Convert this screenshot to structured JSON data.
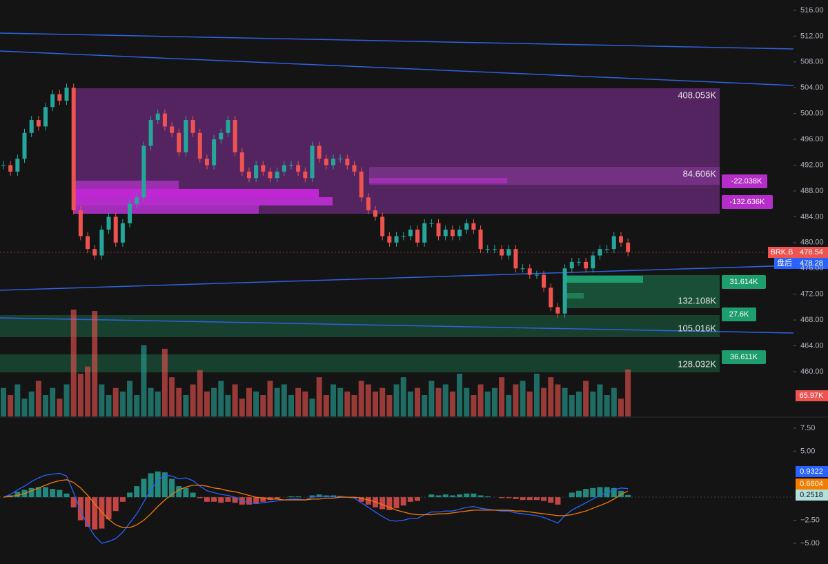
{
  "chart_data": [
    {
      "type": "candlestick",
      "symbol": "BRK.B",
      "close": [
        492,
        491,
        493,
        497,
        499,
        498,
        501,
        503,
        502,
        504,
        485,
        481,
        479,
        478,
        482,
        484,
        480,
        483,
        486,
        487,
        495,
        499,
        500,
        498,
        497,
        494,
        499,
        497,
        493,
        492,
        496,
        497,
        499,
        494,
        491,
        490,
        492,
        491,
        490,
        491,
        492,
        492,
        491,
        490,
        495,
        493,
        492,
        493,
        493,
        492,
        491,
        487,
        485,
        484,
        481,
        480,
        481,
        481,
        482,
        480,
        483,
        483,
        481,
        482,
        481,
        482,
        483,
        482,
        479,
        479,
        479,
        478,
        479,
        476,
        476,
        475,
        475,
        473,
        470,
        469,
        476,
        477,
        477,
        476,
        478,
        479,
        479,
        481,
        480,
        478.54
      ],
      "volume": [
        40,
        30,
        45,
        25,
        35,
        50,
        30,
        40,
        25,
        45,
        150,
        60,
        70,
        148,
        45,
        30,
        40,
        35,
        50,
        30,
        100,
        40,
        35,
        95,
        55,
        40,
        30,
        45,
        65,
        35,
        40,
        50,
        30,
        45,
        25,
        40,
        35,
        30,
        50,
        40,
        45,
        30,
        40,
        35,
        25,
        55,
        30,
        45,
        40,
        35,
        30,
        50,
        45,
        35,
        40,
        30,
        45,
        55,
        35,
        40,
        30,
        50,
        40,
        45,
        35,
        60,
        40,
        30,
        45,
        35,
        40,
        55,
        30,
        45,
        50,
        35,
        60,
        40,
        55,
        45,
        40,
        30,
        35,
        50,
        35,
        45,
        30,
        40,
        25,
        65.97
      ],
      "volume_color_up": "#26a69a",
      "volume_color_down": "#ef5350",
      "volume_last_label": "65.97K",
      "up_color": "#26a69a",
      "down_color": "#ef5350",
      "after_hours_label": "盘后",
      "after_hours_price": 478.28,
      "ylim": [
        453.05,
        517.6
      ],
      "yticks": [
        {
          "value": 516,
          "label": "516.00"
        },
        {
          "value": 512,
          "label": "512.00"
        },
        {
          "value": 508,
          "label": "508.00"
        },
        {
          "value": 504,
          "label": "504.00"
        },
        {
          "value": 500,
          "label": "500.00"
        },
        {
          "value": 496,
          "label": "496.00"
        },
        {
          "value": 492,
          "label": "492.00"
        },
        {
          "value": 488,
          "label": "488.00"
        },
        {
          "value": 484,
          "label": "484.00"
        },
        {
          "value": 480,
          "label": "480.00"
        },
        {
          "value": 476,
          "label": "476.00"
        },
        {
          "value": 472,
          "label": "472.00"
        },
        {
          "value": 468,
          "label": "468.00"
        },
        {
          "value": 464,
          "label": "464.00"
        },
        {
          "value": 460,
          "label": "460.00"
        }
      ],
      "annotations": {
        "zone_top": "408.053K",
        "zone_inner": "84.606K",
        "tag1": "-22.038K",
        "tag2": "-132.636K",
        "green1": "132.108K",
        "green1_tag": "31.614K",
        "green2": "105.016K",
        "green2_tag": "27.6K",
        "green3": "128.032K",
        "green3_tag": "36.611K"
      }
    },
    {
      "type": "macd",
      "macd": [
        0,
        0.3,
        0.8,
        1.2,
        1.7,
        2.1,
        2.4,
        2.5,
        2.6,
        2.3,
        0.5,
        -1.5,
        -3,
        -4.2,
        -5,
        -4.8,
        -4.5,
        -3.8,
        -2.8,
        -1.8,
        -0.5,
        0.8,
        1.8,
        2.4,
        2.3,
        2,
        2.1,
        1.8,
        1.2,
        0.7,
        0.5,
        0.3,
        0.2,
        0,
        -0.4,
        -0.6,
        -0.7,
        -0.6,
        -0.5,
        -0.4,
        -0.3,
        -0.2,
        -0.2,
        -0.3,
        0,
        0.1,
        0.1,
        0.1,
        0.1,
        0,
        -0.1,
        -0.6,
        -1.1,
        -1.6,
        -2.1,
        -2.5,
        -2.6,
        -2.5,
        -2.3,
        -2.3,
        -1.9,
        -1.6,
        -1.6,
        -1.5,
        -1.5,
        -1.3,
        -1.1,
        -1,
        -1.2,
        -1.3,
        -1.4,
        -1.5,
        -1.5,
        -1.7,
        -1.8,
        -1.9,
        -2,
        -2.2,
        -2.5,
        -2.8,
        -2,
        -1.4,
        -1,
        -0.6,
        -0.2,
        0.2,
        0.5,
        0.8,
        1,
        0.9322
      ],
      "signal": [
        0,
        0.1,
        0.2,
        0.4,
        0.7,
        1,
        1.3,
        1.6,
        1.8,
        1.9,
        1.6,
        1,
        0.2,
        -0.7,
        -1.6,
        -2.4,
        -3,
        -3.3,
        -3.3,
        -3,
        -2.5,
        -1.8,
        -1,
        -0.3,
        0.3,
        0.8,
        1.1,
        1.3,
        1.3,
        1.2,
        1,
        0.9,
        0.7,
        0.6,
        0.4,
        0.2,
        0,
        -0.1,
        -0.2,
        -0.2,
        -0.3,
        -0.3,
        -0.3,
        -0.3,
        -0.2,
        -0.2,
        -0.1,
        -0.1,
        0,
        0,
        0,
        -0.1,
        -0.3,
        -0.5,
        -0.8,
        -1.1,
        -1.4,
        -1.6,
        -1.8,
        -1.9,
        -1.9,
        -1.9,
        -1.8,
        -1.8,
        -1.7,
        -1.6,
        -1.5,
        -1.4,
        -1.4,
        -1.4,
        -1.4,
        -1.4,
        -1.4,
        -1.5,
        -1.5,
        -1.6,
        -1.7,
        -1.8,
        -1.9,
        -2,
        -2,
        -1.9,
        -1.7,
        -1.5,
        -1.2,
        -0.9,
        -0.6,
        -0.2,
        0.3,
        0.6804
      ],
      "histogram": [
        0,
        0.2,
        0.6,
        0.8,
        1,
        1.1,
        1.1,
        0.9,
        0.8,
        0.4,
        -1.1,
        -2.5,
        -3.2,
        -3.5,
        -3.4,
        -2.4,
        -1.5,
        -0.5,
        0.5,
        1.2,
        2,
        2.6,
        2.8,
        2.7,
        2,
        1.2,
        1,
        0.5,
        -0.1,
        -0.5,
        -0.5,
        -0.6,
        -0.5,
        -0.6,
        -0.8,
        -0.8,
        -0.7,
        -0.5,
        -0.3,
        -0.2,
        0,
        0.1,
        0.1,
        0,
        0.2,
        0.3,
        0.2,
        0.2,
        0.1,
        0,
        -0.1,
        -0.5,
        -0.8,
        -1.1,
        -1.3,
        -1.4,
        -1.2,
        -0.9,
        -0.5,
        -0.4,
        0,
        0.3,
        0.2,
        0.3,
        0.2,
        0.3,
        0.4,
        0.4,
        0.2,
        0.1,
        0,
        -0.1,
        -0.1,
        -0.2,
        -0.3,
        -0.3,
        -0.3,
        -0.4,
        -0.6,
        -0.8,
        0,
        0.5,
        0.7,
        0.9,
        1,
        1.1,
        1.1,
        1,
        0.7,
        0.2518
      ],
      "macd_color": "#2962ff",
      "signal_color": "#f57c00",
      "hist_up_color": "#26a69a",
      "hist_down_color": "#ef5350",
      "ylim": [
        -7.25,
        8.62
      ],
      "yticks": [
        {
          "value": 7.5,
          "label": "7.50"
        },
        {
          "value": 5,
          "label": "5.00"
        },
        {
          "value": -2.5,
          "label": "−2.50"
        },
        {
          "value": -5,
          "label": "−5.00"
        }
      ]
    }
  ]
}
